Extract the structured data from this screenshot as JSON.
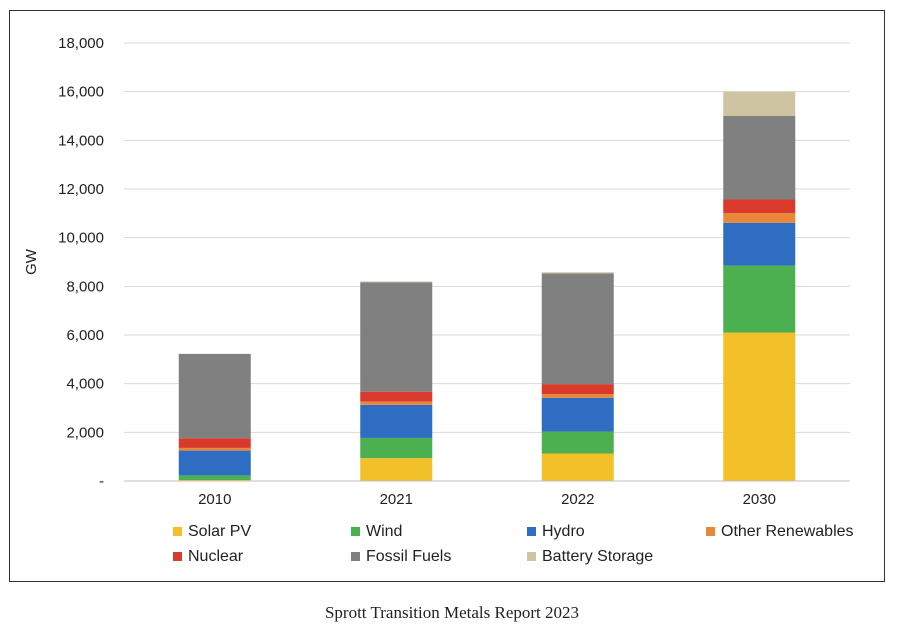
{
  "caption": "Sprott Transition Metals Report 2023",
  "chart_data": {
    "type": "bar",
    "stacked": true,
    "title": "",
    "xlabel": "",
    "ylabel": "GW",
    "ylim": [
      0,
      18000
    ],
    "yticks": [
      0,
      2000,
      4000,
      6000,
      8000,
      10000,
      12000,
      14000,
      16000,
      18000
    ],
    "ytick_labels": [
      "-",
      "2,000",
      "4,000",
      "6,000",
      "8,000",
      "10,000",
      "12,000",
      "14,000",
      "16,000",
      "18,000"
    ],
    "grid": true,
    "legend_position": "bottom",
    "categories": [
      "2010",
      "2021",
      "2022",
      "2030"
    ],
    "series": [
      {
        "name": "Solar PV",
        "color": "#F2C028",
        "values": [
          40,
          940,
          1130,
          6100
        ]
      },
      {
        "name": "Wind",
        "color": "#4CAF50",
        "values": [
          190,
          830,
          900,
          2750
        ]
      },
      {
        "name": "Hydro",
        "color": "#2E6DC2",
        "values": [
          1020,
          1360,
          1390,
          1760
        ]
      },
      {
        "name": "Other Renewables",
        "color": "#E8863A",
        "values": [
          110,
          140,
          150,
          400
        ]
      },
      {
        "name": "Nuclear",
        "color": "#D93A2B",
        "values": [
          400,
          400,
          410,
          560
        ]
      },
      {
        "name": "Fossil Fuels",
        "color": "#808080",
        "values": [
          3460,
          4500,
          4550,
          3430
        ]
      },
      {
        "name": "Battery Storage",
        "color": "#CFC4A2",
        "values": [
          10,
          30,
          50,
          1000
        ]
      }
    ]
  }
}
